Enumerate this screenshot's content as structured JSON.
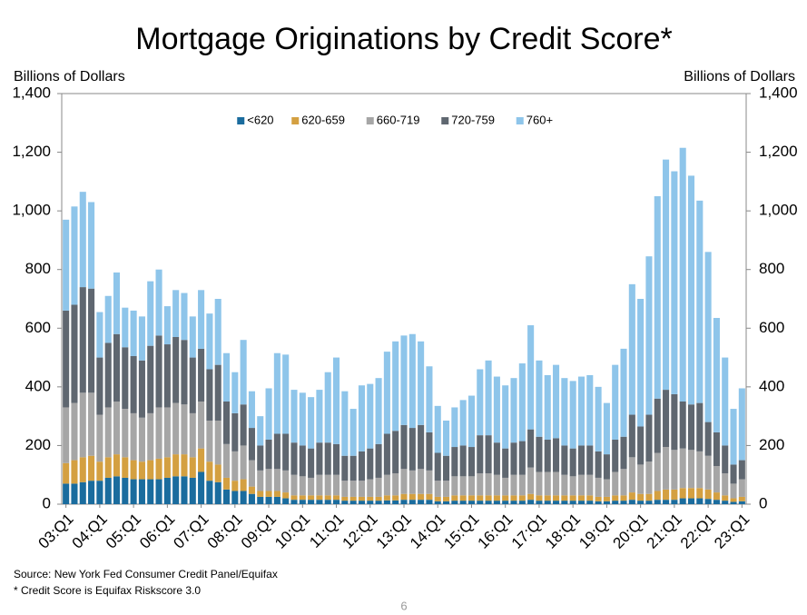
{
  "chart_data": {
    "type": "stacked_bar",
    "title": "Mortgage Originations by Credit Score*",
    "ylabel": "Billions of Dollars",
    "y2label": "Billions of Dollars",
    "source": "Source: New York Fed Consumer Credit Panel/Equifax",
    "footnote": "* Credit Score is Equifax Riskscore 3.0",
    "page_number": "6",
    "legend": "top",
    "ylim": [
      0,
      1400
    ],
    "yticks": [
      0,
      200,
      400,
      600,
      800,
      {
        "value": 1000,
        "label": "1,000"
      },
      {
        "value": 1200,
        "label": "1,200"
      },
      {
        "value": 1400,
        "label": "1,400"
      }
    ],
    "y2lim": [
      0,
      1400
    ],
    "y2ticks": [
      0,
      200,
      400,
      600,
      800,
      {
        "value": 1000,
        "label": "1,000"
      },
      {
        "value": 1200,
        "label": "1,200"
      },
      {
        "value": 1400,
        "label": "1,400"
      }
    ],
    "categories": [
      "03:Q1",
      null,
      null,
      null,
      "04:Q1",
      null,
      null,
      null,
      "05:Q1",
      null,
      null,
      null,
      "06:Q1",
      null,
      null,
      null,
      "07:Q1",
      null,
      null,
      null,
      "08:Q1",
      null,
      null,
      null,
      "09:Q1",
      null,
      null,
      null,
      "10:Q1",
      null,
      null,
      null,
      "11:Q1",
      null,
      null,
      null,
      "12:Q1",
      null,
      null,
      null,
      "13:Q1",
      null,
      null,
      null,
      "14:Q1",
      null,
      null,
      null,
      "15:Q1",
      null,
      null,
      null,
      "16:Q1",
      null,
      null,
      null,
      "17:Q1",
      null,
      null,
      null,
      "18:Q1",
      null,
      null,
      null,
      "19:Q1",
      null,
      null,
      null,
      "20:Q1",
      null,
      null,
      null,
      "21:Q1",
      null,
      null,
      null,
      "22:Q1",
      null,
      null,
      null,
      "23:Q1"
    ],
    "series": [
      {
        "name": "<620",
        "color": "#1a6c9e",
        "values": [
          70,
          70,
          75,
          80,
          80,
          90,
          95,
          90,
          85,
          85,
          85,
          85,
          90,
          95,
          95,
          90,
          110,
          80,
          75,
          50,
          45,
          45,
          35,
          25,
          25,
          25,
          20,
          15,
          15,
          15,
          15,
          15,
          15,
          12,
          12,
          12,
          12,
          12,
          13,
          13,
          15,
          15,
          15,
          15,
          10,
          10,
          12,
          12,
          12,
          12,
          12,
          12,
          12,
          12,
          12,
          15,
          12,
          12,
          12,
          12,
          12,
          12,
          12,
          10,
          10,
          12,
          12,
          15,
          12,
          12,
          15,
          15,
          15,
          20,
          20,
          20,
          18,
          15,
          12,
          8,
          10
        ]
      },
      {
        "name": "620-659",
        "color": "#d4a041",
        "values": [
          70,
          80,
          85,
          85,
          65,
          70,
          75,
          70,
          65,
          60,
          65,
          70,
          70,
          75,
          75,
          70,
          80,
          65,
          60,
          40,
          35,
          40,
          25,
          20,
          20,
          20,
          20,
          15,
          15,
          15,
          15,
          15,
          15,
          13,
          13,
          13,
          13,
          13,
          17,
          17,
          20,
          20,
          20,
          20,
          15,
          15,
          18,
          18,
          18,
          18,
          18,
          18,
          18,
          18,
          18,
          20,
          18,
          18,
          18,
          18,
          18,
          18,
          18,
          15,
          15,
          18,
          18,
          25,
          23,
          23,
          30,
          35,
          35,
          35,
          35,
          35,
          32,
          25,
          18,
          12,
          15
        ]
      },
      {
        "name": "660-719",
        "color": "#a6a6a6",
        "values": [
          190,
          195,
          220,
          215,
          160,
          170,
          180,
          165,
          160,
          150,
          160,
          175,
          170,
          175,
          170,
          150,
          160,
          140,
          150,
          115,
          100,
          115,
          90,
          70,
          75,
          75,
          75,
          70,
          65,
          60,
          70,
          70,
          70,
          55,
          55,
          55,
          60,
          65,
          70,
          75,
          85,
          80,
          85,
          80,
          55,
          55,
          65,
          65,
          65,
          75,
          75,
          70,
          60,
          70,
          70,
          90,
          80,
          80,
          80,
          70,
          65,
          70,
          70,
          65,
          60,
          80,
          90,
          120,
          100,
          110,
          130,
          145,
          135,
          135,
          130,
          125,
          115,
          90,
          75,
          50,
          60
        ]
      },
      {
        "name": "720-759",
        "color": "#5f6770",
        "values": [
          330,
          335,
          360,
          355,
          195,
          220,
          230,
          210,
          195,
          195,
          230,
          245,
          215,
          225,
          220,
          190,
          180,
          175,
          190,
          145,
          130,
          140,
          110,
          85,
          100,
          120,
          125,
          110,
          105,
          100,
          110,
          110,
          105,
          85,
          85,
          100,
          105,
          115,
          140,
          145,
          150,
          145,
          150,
          130,
          95,
          85,
          100,
          105,
          100,
          130,
          130,
          110,
          100,
          110,
          115,
          130,
          120,
          110,
          115,
          100,
          95,
          100,
          100,
          90,
          85,
          110,
          110,
          145,
          130,
          160,
          185,
          195,
          190,
          160,
          155,
          165,
          115,
          115,
          95,
          65,
          65
        ]
      },
      {
        "name": "760+",
        "color": "#8ec5ea",
        "values": [
          310,
          335,
          325,
          295,
          155,
          160,
          210,
          135,
          155,
          150,
          220,
          225,
          130,
          160,
          160,
          140,
          200,
          190,
          225,
          165,
          140,
          220,
          125,
          100,
          175,
          275,
          270,
          180,
          180,
          175,
          180,
          240,
          295,
          220,
          160,
          225,
          220,
          225,
          280,
          305,
          305,
          320,
          285,
          225,
          160,
          120,
          135,
          155,
          175,
          225,
          255,
          225,
          215,
          220,
          265,
          355,
          260,
          220,
          250,
          230,
          230,
          235,
          240,
          220,
          175,
          255,
          300,
          445,
          435,
          540,
          690,
          785,
          760,
          865,
          780,
          690,
          580,
          390,
          300,
          190,
          245
        ]
      }
    ]
  }
}
